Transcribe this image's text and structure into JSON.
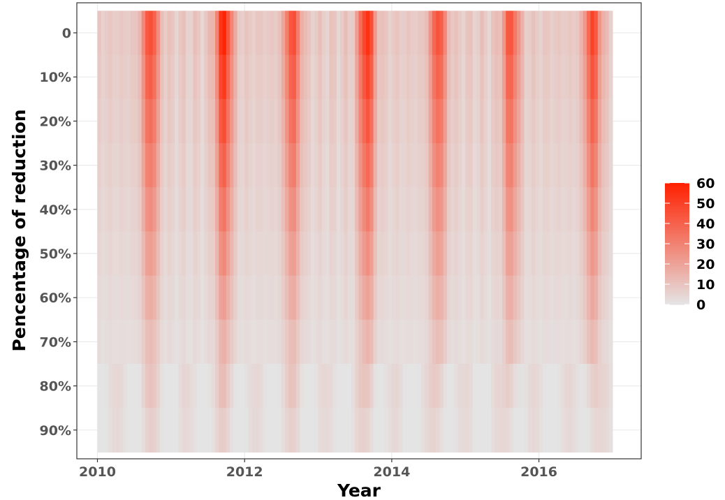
{
  "chart_data": {
    "type": "heatmap",
    "title": "",
    "xlabel": "Year",
    "ylabel": "Pencentage of reduction",
    "x_ticks": [
      "2010",
      "2012",
      "2014",
      "2016"
    ],
    "x_tick_values": [
      2010,
      2012,
      2014,
      2016
    ],
    "xlim": [
      2009.72,
      2017.39
    ],
    "y_categories": [
      "0",
      "10%",
      "20%",
      "30%",
      "40%",
      "50%",
      "60%",
      "70%",
      "80%",
      "90%"
    ],
    "x_range": [
      2010.0,
      2017.0
    ],
    "value_range": [
      0,
      60
    ],
    "legend": {
      "placement": "right",
      "ticks": [
        "0",
        "10",
        "20",
        "30",
        "40",
        "50",
        "60"
      ],
      "tick_values": [
        0,
        10,
        20,
        30,
        40,
        50,
        60
      ],
      "color_low": "#e4e4e4",
      "color_high": "#ff2000"
    },
    "season_peak_centers": [
      2010.72,
      2011.72,
      2012.65,
      2013.66,
      2014.63,
      2015.62,
      2016.73
    ],
    "season_peak_values_at_0": [
      48,
      58,
      46,
      56,
      46,
      44,
      48
    ],
    "baseline_value": 8,
    "grid": true,
    "panel_border": true
  }
}
